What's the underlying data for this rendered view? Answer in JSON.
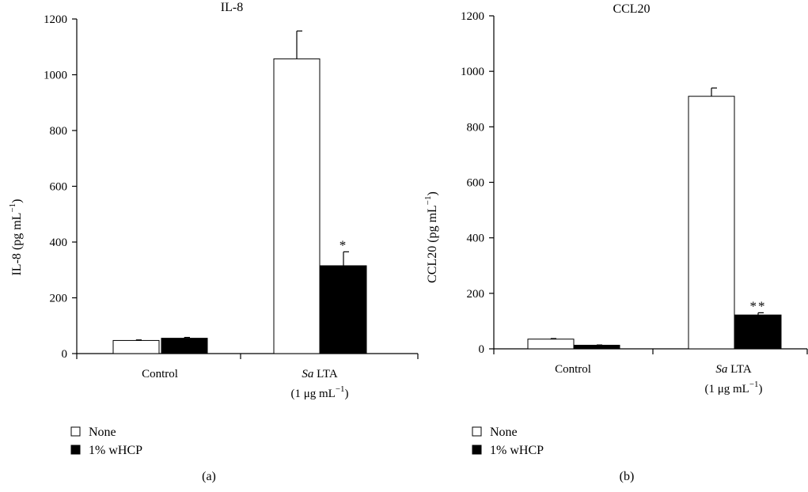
{
  "colors": {
    "none": "#ffffff",
    "whcp": "#000000",
    "stroke": "#000000"
  },
  "legend": {
    "none_label": "None",
    "whcp_label": "1% wHCP"
  },
  "chart_data": [
    {
      "type": "bar",
      "title": "IL-8",
      "panel_label": "(a)",
      "ylabel_main": "IL-8 (pg mL",
      "ylabel_sup": "−1",
      "ylabel_close": ")",
      "ylim": [
        0,
        1200
      ],
      "yticks": [
        0,
        200,
        400,
        600,
        800,
        1000,
        1200
      ],
      "categories": [
        {
          "line1_italic": "",
          "line1": "Control",
          "line2": "",
          "line2_sup": "",
          "line2_close": ""
        },
        {
          "line1_italic": "Sa",
          "line1": " LTA",
          "line2": "(1 μg mL",
          "line2_sup": "−1",
          "line2_close": ")"
        }
      ],
      "series": [
        {
          "name": "None",
          "values": [
            47,
            1057
          ],
          "errors": [
            2,
            100
          ]
        },
        {
          "name": "1% wHCP",
          "values": [
            55,
            315
          ],
          "errors": [
            3,
            50
          ]
        }
      ],
      "annotations": [
        "",
        "*"
      ]
    },
    {
      "type": "bar",
      "title": "CCL20",
      "panel_label": "(b)",
      "ylabel_main": "CCL20 (pg mL",
      "ylabel_sup": "−1",
      "ylabel_close": ")",
      "ylim": [
        0,
        1200
      ],
      "yticks": [
        0,
        200,
        400,
        600,
        800,
        1000,
        1200
      ],
      "categories": [
        {
          "line1_italic": "",
          "line1": "Control",
          "line2": "",
          "line2_sup": "",
          "line2_close": ""
        },
        {
          "line1_italic": "Sa",
          "line1": " LTA",
          "line2": "(1 μg mL",
          "line2_sup": "−1",
          "line2_close": ")"
        }
      ],
      "series": [
        {
          "name": "None",
          "values": [
            35,
            910
          ],
          "errors": [
            2,
            30
          ]
        },
        {
          "name": "1% wHCP",
          "values": [
            13,
            122
          ],
          "errors": [
            1,
            8
          ]
        }
      ],
      "annotations": [
        "",
        "**"
      ]
    }
  ]
}
